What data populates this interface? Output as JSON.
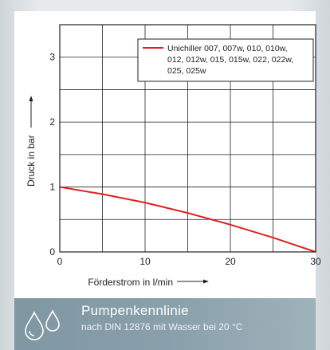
{
  "banner": {
    "title": "Pumpenkennlinie",
    "subtitle": "nach DIN 12876 mit Wasser bei 20 °C",
    "icon": "water-drops-icon"
  },
  "chart_data": {
    "type": "line",
    "xlabel": "Förderstrom in l/min",
    "ylabel": "Druck in bar",
    "xlim": [
      0,
      30
    ],
    "ylim": [
      0,
      3.5
    ],
    "xticks": [
      0,
      10,
      20,
      30
    ],
    "yticks": [
      0,
      1,
      2,
      3
    ],
    "grid": true,
    "legend_position": "top-right",
    "series": [
      {
        "name": "Unichiller 007, 007w, 010, 010w, 012, 012w, 015, 015w, 022, 022w, 025, 025w",
        "color": "#e02020",
        "x": [
          0,
          5,
          10,
          15,
          20,
          25,
          30
        ],
        "y": [
          1.0,
          0.89,
          0.76,
          0.6,
          0.42,
          0.22,
          0.0
        ]
      }
    ]
  }
}
